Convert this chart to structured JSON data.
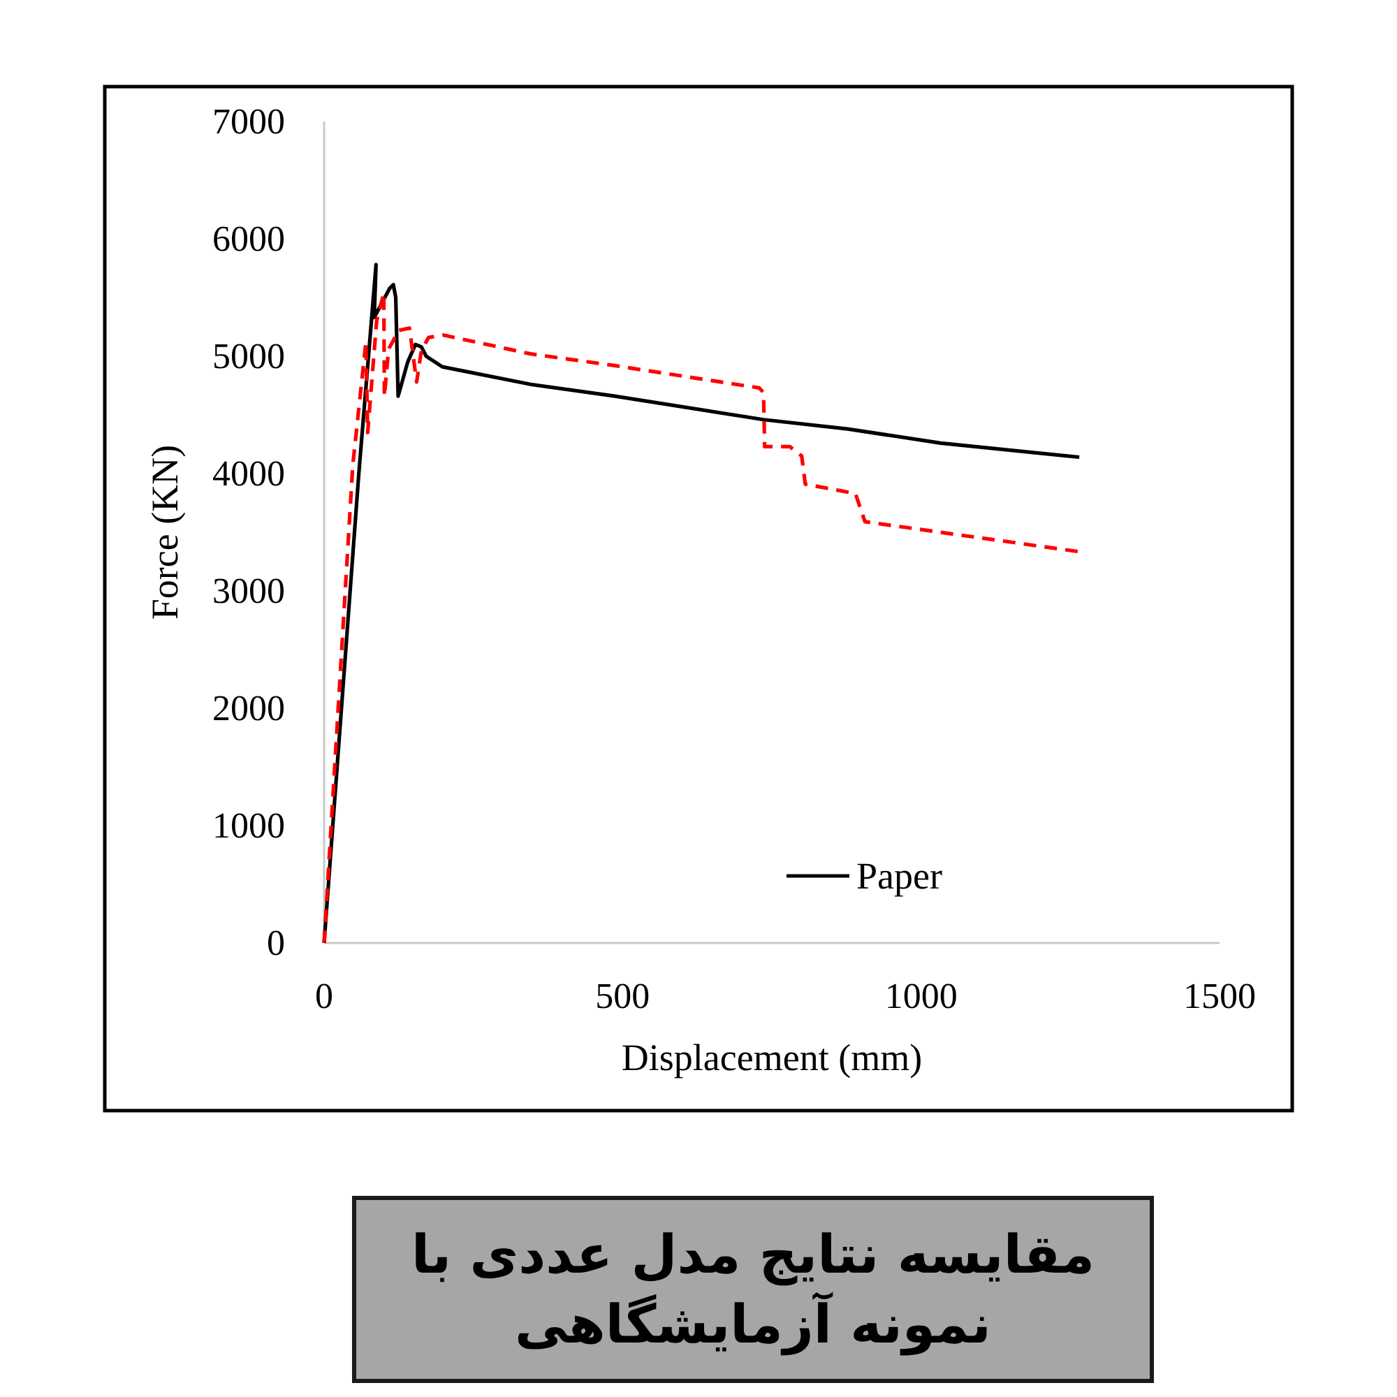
{
  "chart_data": {
    "type": "line",
    "title": "مقایسه نتایج مدل عددی با نمونه آزمایشگاهی",
    "xlabel": "Displacement (mm)",
    "ylabel": "Force (KN)",
    "xlim": [
      0,
      1500
    ],
    "xticks": [
      0,
      500,
      1000,
      1500
    ],
    "ylim": [
      0,
      7000
    ],
    "yticks": [
      0,
      1000,
      2000,
      3000,
      4000,
      5000,
      6000,
      7000
    ],
    "legend": "bottom right",
    "series": [
      {
        "name": "Paper",
        "color": "#000000",
        "line_style": "solid",
        "x": [
          0,
          58,
          87,
          84,
          110,
          116,
          120,
          124,
          140,
          153,
          163,
          171,
          198,
          346,
          487,
          736,
          877,
          1033,
          1265
        ],
        "values": [
          0,
          3990,
          5780,
          5330,
          5580,
          5610,
          5500,
          4660,
          4950,
          5100,
          5080,
          5000,
          4910,
          4760,
          4660,
          4460,
          4380,
          4260,
          4140
        ]
      },
      {
        "color": "#ff0000",
        "line_style": "dashed",
        "x": [
          0,
          48,
          70,
          73,
          88,
          100,
          101,
          108,
          125,
          143,
          155,
          163,
          175,
          200,
          346,
          487,
          729,
          736,
          738,
          780,
          800,
          806,
          890,
          906,
          1271
        ],
        "values": [
          0,
          4070,
          5120,
          4350,
          5300,
          5540,
          4660,
          5060,
          5220,
          5240,
          4780,
          5050,
          5160,
          5180,
          5020,
          4920,
          4730,
          4690,
          4230,
          4230,
          4150,
          3910,
          3830,
          3590,
          3330
        ]
      }
    ]
  }
}
